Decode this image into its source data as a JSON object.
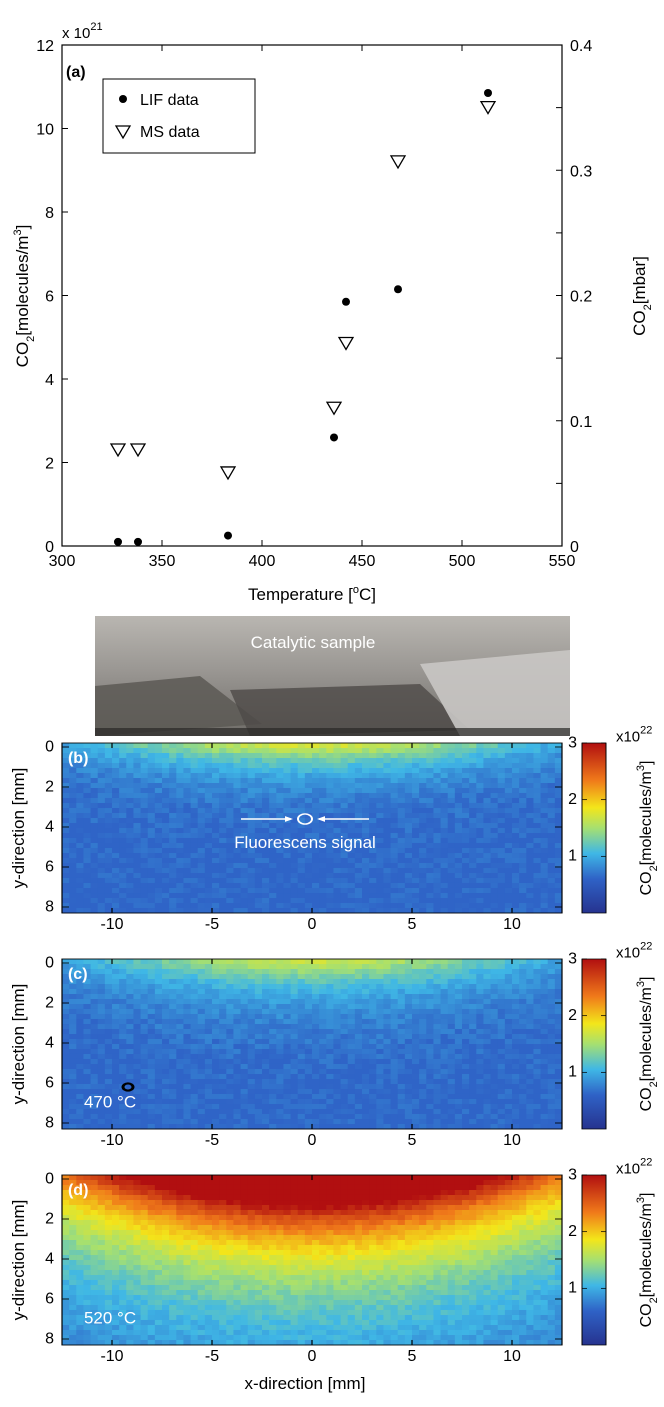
{
  "panel_a": {
    "label": "(a)",
    "exponent_label": "x 10",
    "exponent_power": "21",
    "xlabel": "Temperature [°C]",
    "ylabel_left": "CO2[molecules/m3]",
    "ylabel_right": "CO2[mbar]",
    "xticks": [
      "300",
      "350",
      "400",
      "450",
      "500",
      "550"
    ],
    "yticks_left": [
      "0",
      "2",
      "4",
      "6",
      "8",
      "10",
      "12"
    ],
    "yticks_right": [
      "0",
      "0.1",
      "0.2",
      "0.3",
      "0.4"
    ],
    "legend": {
      "lif": "LIF data",
      "ms": "MS data"
    }
  },
  "photo": {
    "caption": "Catalytic sample"
  },
  "maps": {
    "b": {
      "label": "(b)",
      "annotation": "Fluorescens signal",
      "temperature": ""
    },
    "c": {
      "label": "(c)",
      "annotation": "",
      "temperature": "470 °C"
    },
    "d": {
      "label": "(d)",
      "annotation": "",
      "temperature": "520 °C"
    },
    "xlabel": "x-direction [mm]",
    "ylabel": "y-direction [mm]",
    "xticks": [
      "-10",
      "-5",
      "0",
      "5",
      "10"
    ],
    "yticks": [
      "0",
      "2",
      "4",
      "6",
      "8"
    ],
    "colorbar_ticks": [
      "1",
      "2",
      "3"
    ],
    "colorbar_exponent": "x10",
    "colorbar_power": "22",
    "colorbar_label": "CO2[molecules/m3]"
  },
  "colors": {
    "low": "#2a3fa8",
    "mid": "#3fb7e6",
    "yellow": "#f3e61a",
    "high": "#cc1010"
  },
  "chart_data": [
    {
      "type": "scatter",
      "xlim": [
        300,
        550
      ],
      "ylim": [
        0,
        12
      ],
      "ylim_right": [
        0,
        0.4
      ],
      "series": [
        {
          "name": "LIF data",
          "marker": "filled-circle",
          "axis": "left",
          "x": [
            328,
            338,
            383,
            436,
            442,
            468,
            513
          ],
          "y": [
            0.1,
            0.1,
            0.25,
            2.6,
            5.85,
            6.15,
            10.85
          ]
        },
        {
          "name": "MS data",
          "marker": "open-triangle",
          "axis": "left",
          "x": [
            328,
            338,
            383,
            436,
            442,
            468,
            513
          ],
          "y": [
            2.3,
            2.3,
            1.75,
            3.3,
            4.85,
            9.2,
            10.5
          ]
        }
      ],
      "legend_position": "top-left",
      "grid": false
    },
    {
      "type": "heatmap",
      "panel": "b",
      "xlim": [
        -12.5,
        12.5
      ],
      "ylim": [
        8.3,
        -0.2
      ],
      "zlim_e22": [
        0,
        3
      ],
      "peak_e22": 1.0,
      "plume_width_mm": 8,
      "plume_depth_mm": 1.2
    },
    {
      "type": "heatmap",
      "panel": "c",
      "xlim": [
        -12.5,
        12.5
      ],
      "ylim": [
        8.3,
        -0.2
      ],
      "zlim_e22": [
        0,
        3
      ],
      "peak_e22": 0.95,
      "plume_width_mm": 8,
      "plume_depth_mm": 1.5
    },
    {
      "type": "heatmap",
      "panel": "d",
      "xlim": [
        -12.5,
        12.5
      ],
      "ylim": [
        8.3,
        -0.2
      ],
      "zlim_e22": [
        0,
        3
      ],
      "peak_e22": 3.2,
      "plume_width_mm": 10,
      "plume_depth_mm": 3.2
    }
  ]
}
